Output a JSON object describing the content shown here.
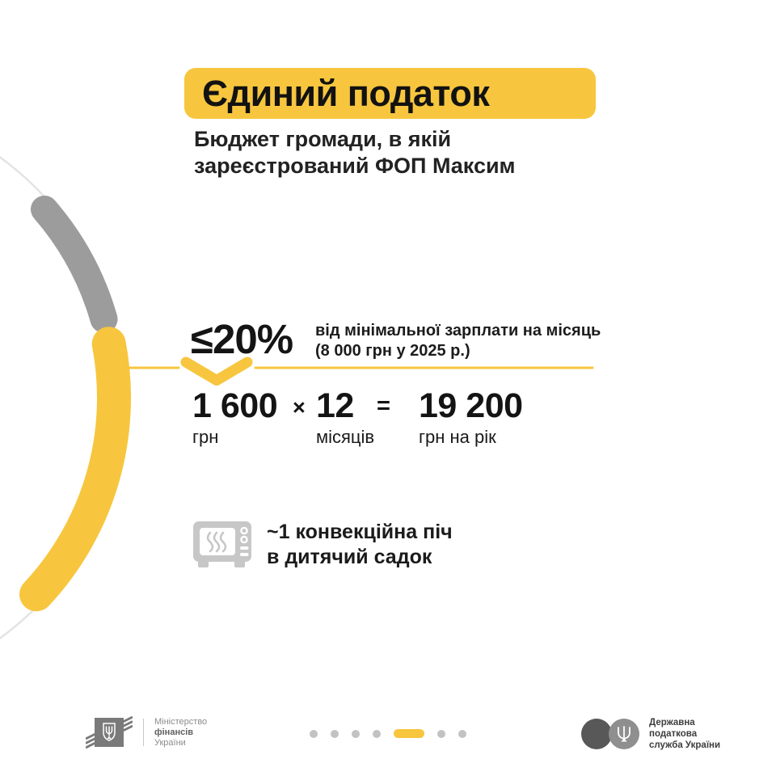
{
  "header": {
    "title": "Єдиний податок",
    "subtitle_line1": "Бюджет громади, в якій",
    "subtitle_line2": "зареєстрований ФОП Максим"
  },
  "rate": {
    "value": "≤20%",
    "desc_line1": "від мінімальної зарплати на місяць",
    "desc_line2": "(8 000 грн у 2025 р.)"
  },
  "calculation": {
    "amount": "1 600",
    "amount_unit": "грн",
    "times_sign": "×",
    "months": "12",
    "months_unit": "місяців",
    "equals_sign": "=",
    "total": "19 200",
    "total_unit": "грн на рік"
  },
  "equivalent": {
    "icon": "convection-oven-icon",
    "line1": "~1 конвекційна піч",
    "line2": "в дитячий садок"
  },
  "footer": {
    "ministry": {
      "icon": "trident-shield-icon",
      "line1": "Міністерство",
      "line2": "фінансів",
      "line3": "України"
    },
    "pagination": {
      "total": 7,
      "active": 5
    },
    "tax_service": {
      "icon": "trident-icon",
      "line1": "Державна",
      "line2": "податкова",
      "line3": "служба України"
    }
  },
  "colors": {
    "accent_yellow": "#F7C63E",
    "arc_gray": "#9C9C9C",
    "circle_outline": "#E3E3E3",
    "icon_gray": "#C7C7C7",
    "dot_gray": "#C2C2C2",
    "text_primary": "#161616",
    "ministry_gray": "#7A7A7A",
    "ministry_text": "#8C8C8C",
    "tax_dark_circle": "#585858",
    "tax_light_circle": "#8F8F8F",
    "tax_text": "#3D3D3D"
  }
}
